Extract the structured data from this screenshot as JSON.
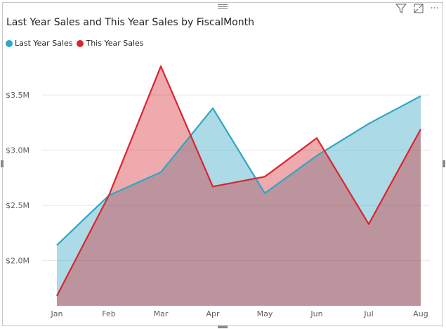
{
  "chart_data": {
    "type": "area",
    "title": "Last Year Sales and This Year Sales by FiscalMonth",
    "categories": [
      "Jan",
      "Feb",
      "Mar",
      "Apr",
      "May",
      "Jun",
      "Jul",
      "Aug"
    ],
    "series": [
      {
        "name": "Last Year Sales",
        "color": "#2ea7c4",
        "values": [
          2.14,
          2.59,
          2.8,
          3.38,
          2.61,
          2.95,
          3.24,
          3.49
        ]
      },
      {
        "name": "This Year Sales",
        "color": "#d9262e",
        "values": [
          1.68,
          2.59,
          3.76,
          2.67,
          2.76,
          3.11,
          2.33,
          3.19
        ]
      }
    ],
    "unit": "$M",
    "yticks": [
      {
        "value": 2.0,
        "label": "$2.0M"
      },
      {
        "value": 2.5,
        "label": "$2.5M"
      },
      {
        "value": 3.0,
        "label": "$3.0M"
      },
      {
        "value": 3.5,
        "label": "$3.5M"
      }
    ],
    "ylim": [
      1.59,
      3.8
    ],
    "grid": true,
    "legend_position": "top-left"
  },
  "toolbar": {
    "icons": [
      "filter-icon",
      "focus-mode-icon",
      "more-options-icon"
    ],
    "more_label": "···"
  }
}
